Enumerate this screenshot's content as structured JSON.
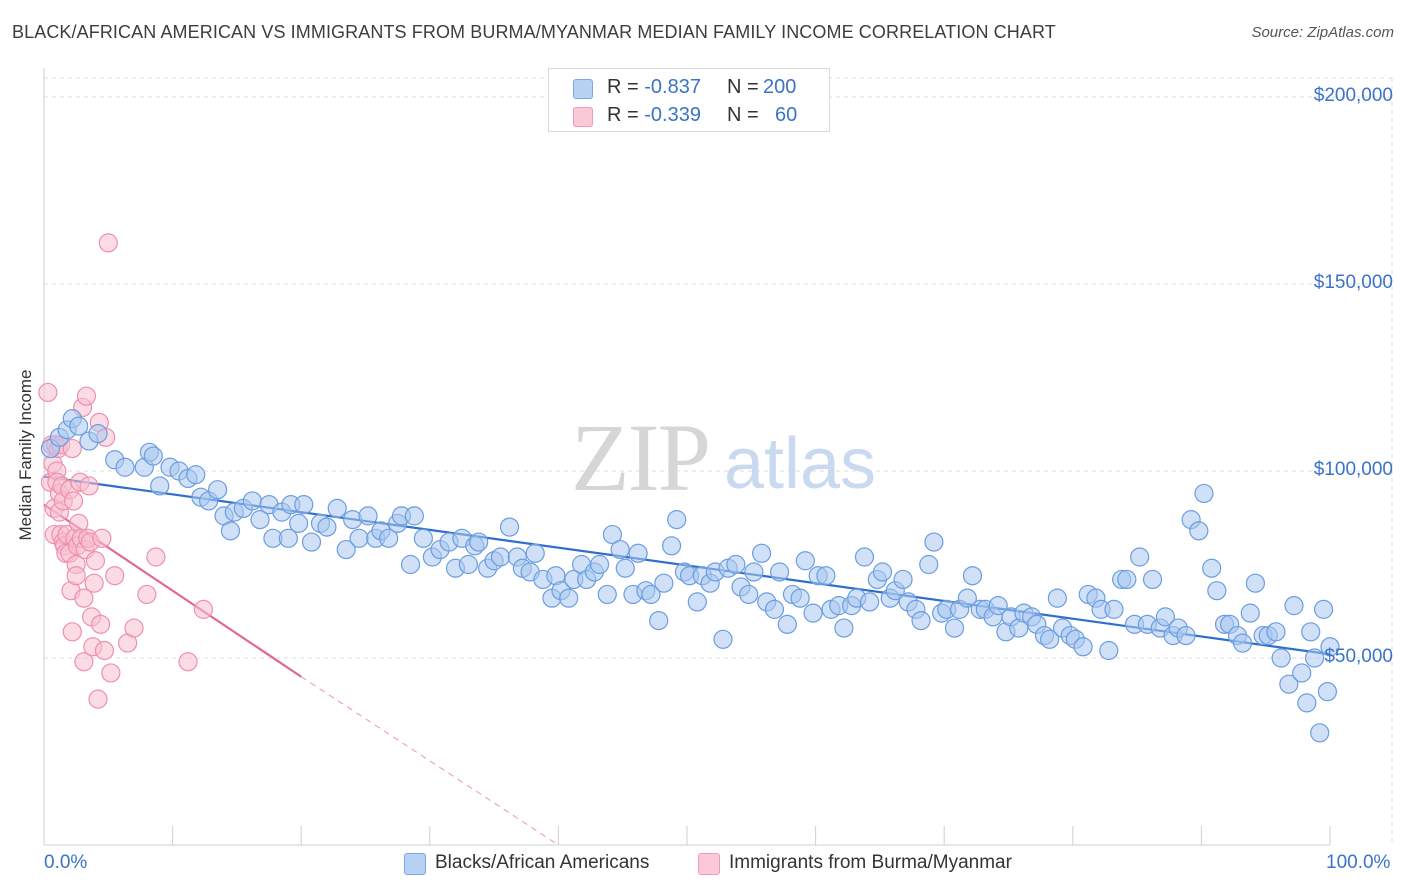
{
  "title": "BLACK/AFRICAN AMERICAN VS IMMIGRANTS FROM BURMA/MYANMAR MEDIAN FAMILY INCOME CORRELATION CHART",
  "source": "Source: ZipAtlas.com",
  "watermark": {
    "zip": "ZIP",
    "atlas": "atlas"
  },
  "legend": {
    "series1": {
      "r_label": "R = ",
      "r_value": "-0.837",
      "n_label": "N = ",
      "n_value": "200"
    },
    "series2": {
      "r_label": "R = ",
      "r_value": "-0.339",
      "n_label": "N = ",
      "n_value": "60"
    }
  },
  "colors": {
    "blue_fill": "#a9c8f0",
    "blue_stroke": "#6b9de0",
    "blue_line": "#2f6fcc",
    "pink_fill": "#f7bfd0",
    "pink_stroke": "#ef8fae",
    "pink_line": "#e06a93",
    "axis_text": "#3b73c9",
    "grid": "#dddddd"
  },
  "chart_data": {
    "type": "scatter",
    "title": "BLACK/AFRICAN AMERICAN VS IMMIGRANTS FROM BURMA/MYANMAR MEDIAN FAMILY INCOME CORRELATION CHART",
    "xlabel": "",
    "ylabel": "Median Family Income",
    "xlim": [
      0,
      100
    ],
    "ylim": [
      0,
      210000
    ],
    "x_tick_labels": [
      "0.0%",
      "100.0%"
    ],
    "y_ticks": [
      50000,
      100000,
      150000,
      200000
    ],
    "y_tick_labels": [
      "$50,000",
      "$100,000",
      "$150,000",
      "$200,000"
    ],
    "grid": true,
    "legend_position": "top-center",
    "series": [
      {
        "name": "Blacks/African Americans",
        "r": -0.837,
        "n": 200,
        "trend": {
          "x": [
            0,
            100
          ],
          "y": [
            98500,
            51000
          ]
        },
        "points": [
          [
            0.5,
            106000
          ],
          [
            1.2,
            109000
          ],
          [
            1.8,
            111000
          ],
          [
            2.2,
            114000
          ],
          [
            2.7,
            112000
          ],
          [
            3.5,
            108000
          ],
          [
            4.2,
            110000
          ],
          [
            5.5,
            103000
          ],
          [
            6.3,
            101000
          ],
          [
            7.8,
            101000
          ],
          [
            8.2,
            105000
          ],
          [
            8.5,
            104000
          ],
          [
            9.0,
            96000
          ],
          [
            9.8,
            101000
          ],
          [
            10.5,
            100000
          ],
          [
            11.2,
            98000
          ],
          [
            11.8,
            99000
          ],
          [
            12.2,
            93000
          ],
          [
            12.8,
            92000
          ],
          [
            13.5,
            95000
          ],
          [
            14.0,
            88000
          ],
          [
            14.5,
            84000
          ],
          [
            14.8,
            89000
          ],
          [
            15.5,
            90000
          ],
          [
            16.2,
            92000
          ],
          [
            16.8,
            87000
          ],
          [
            17.5,
            91000
          ],
          [
            17.8,
            82000
          ],
          [
            18.5,
            89000
          ],
          [
            19.0,
            82000
          ],
          [
            19.2,
            91000
          ],
          [
            19.8,
            86000
          ],
          [
            20.2,
            91000
          ],
          [
            20.8,
            81000
          ],
          [
            21.5,
            86000
          ],
          [
            22.0,
            85000
          ],
          [
            22.8,
            90000
          ],
          [
            23.5,
            79000
          ],
          [
            24.0,
            87000
          ],
          [
            24.5,
            82000
          ],
          [
            25.2,
            88000
          ],
          [
            25.8,
            82000
          ],
          [
            26.2,
            84000
          ],
          [
            26.8,
            82000
          ],
          [
            27.5,
            86000
          ],
          [
            27.8,
            88000
          ],
          [
            28.5,
            75000
          ],
          [
            28.8,
            88000
          ],
          [
            29.5,
            82000
          ],
          [
            30.2,
            77000
          ],
          [
            30.8,
            79000
          ],
          [
            31.5,
            81000
          ],
          [
            32.0,
            74000
          ],
          [
            32.5,
            82000
          ],
          [
            33.0,
            75000
          ],
          [
            33.5,
            80000
          ],
          [
            33.8,
            81000
          ],
          [
            34.5,
            74000
          ],
          [
            35.0,
            76000
          ],
          [
            35.5,
            77000
          ],
          [
            36.2,
            85000
          ],
          [
            36.8,
            77000
          ],
          [
            37.2,
            74000
          ],
          [
            37.8,
            73000
          ],
          [
            38.2,
            78000
          ],
          [
            38.8,
            71000
          ],
          [
            39.5,
            66000
          ],
          [
            39.8,
            72000
          ],
          [
            40.2,
            68000
          ],
          [
            40.8,
            66000
          ],
          [
            41.2,
            71000
          ],
          [
            41.8,
            75000
          ],
          [
            42.2,
            71000
          ],
          [
            42.8,
            73000
          ],
          [
            43.2,
            75000
          ],
          [
            43.8,
            67000
          ],
          [
            44.2,
            83000
          ],
          [
            44.8,
            79000
          ],
          [
            45.2,
            74000
          ],
          [
            45.8,
            67000
          ],
          [
            46.2,
            78000
          ],
          [
            46.8,
            68000
          ],
          [
            47.2,
            67000
          ],
          [
            47.8,
            60000
          ],
          [
            48.2,
            70000
          ],
          [
            48.8,
            80000
          ],
          [
            49.2,
            87000
          ],
          [
            49.8,
            73000
          ],
          [
            50.2,
            72000
          ],
          [
            50.8,
            65000
          ],
          [
            51.2,
            72000
          ],
          [
            51.8,
            70000
          ],
          [
            52.2,
            73000
          ],
          [
            52.8,
            55000
          ],
          [
            53.2,
            74000
          ],
          [
            53.8,
            75000
          ],
          [
            54.2,
            69000
          ],
          [
            54.8,
            67000
          ],
          [
            55.2,
            73000
          ],
          [
            55.8,
            78000
          ],
          [
            56.2,
            65000
          ],
          [
            56.8,
            63000
          ],
          [
            57.2,
            73000
          ],
          [
            57.8,
            59000
          ],
          [
            58.2,
            67000
          ],
          [
            58.8,
            66000
          ],
          [
            59.2,
            76000
          ],
          [
            59.8,
            62000
          ],
          [
            60.2,
            72000
          ],
          [
            60.8,
            72000
          ],
          [
            61.2,
            63000
          ],
          [
            61.8,
            64000
          ],
          [
            62.2,
            58000
          ],
          [
            62.8,
            64000
          ],
          [
            63.2,
            66000
          ],
          [
            63.8,
            77000
          ],
          [
            64.2,
            65000
          ],
          [
            64.8,
            71000
          ],
          [
            65.2,
            73000
          ],
          [
            65.8,
            66000
          ],
          [
            66.2,
            68000
          ],
          [
            66.8,
            71000
          ],
          [
            67.2,
            65000
          ],
          [
            67.8,
            63000
          ],
          [
            68.2,
            60000
          ],
          [
            68.8,
            75000
          ],
          [
            69.2,
            81000
          ],
          [
            69.8,
            62000
          ],
          [
            70.2,
            63000
          ],
          [
            70.8,
            58000
          ],
          [
            71.2,
            63000
          ],
          [
            71.8,
            66000
          ],
          [
            72.2,
            72000
          ],
          [
            72.8,
            63000
          ],
          [
            73.2,
            63000
          ],
          [
            73.8,
            61000
          ],
          [
            74.2,
            64000
          ],
          [
            74.8,
            57000
          ],
          [
            75.2,
            61000
          ],
          [
            75.8,
            58000
          ],
          [
            76.2,
            62000
          ],
          [
            76.8,
            61000
          ],
          [
            77.2,
            59000
          ],
          [
            77.8,
            56000
          ],
          [
            78.2,
            55000
          ],
          [
            78.8,
            66000
          ],
          [
            79.2,
            58000
          ],
          [
            79.8,
            56000
          ],
          [
            80.2,
            55000
          ],
          [
            80.8,
            53000
          ],
          [
            81.2,
            67000
          ],
          [
            81.8,
            66000
          ],
          [
            82.2,
            63000
          ],
          [
            82.8,
            52000
          ],
          [
            83.2,
            63000
          ],
          [
            83.8,
            71000
          ],
          [
            84.2,
            71000
          ],
          [
            84.8,
            59000
          ],
          [
            85.2,
            77000
          ],
          [
            85.8,
            59000
          ],
          [
            86.2,
            71000
          ],
          [
            86.8,
            58000
          ],
          [
            87.2,
            61000
          ],
          [
            87.8,
            56000
          ],
          [
            88.2,
            58000
          ],
          [
            88.8,
            56000
          ],
          [
            89.2,
            87000
          ],
          [
            89.8,
            84000
          ],
          [
            90.2,
            94000
          ],
          [
            90.8,
            74000
          ],
          [
            91.2,
            68000
          ],
          [
            91.8,
            59000
          ],
          [
            92.2,
            59000
          ],
          [
            92.8,
            56000
          ],
          [
            93.2,
            54000
          ],
          [
            93.8,
            62000
          ],
          [
            94.2,
            70000
          ],
          [
            94.8,
            56000
          ],
          [
            95.2,
            56000
          ],
          [
            95.8,
            57000
          ],
          [
            96.2,
            50000
          ],
          [
            96.8,
            43000
          ],
          [
            97.2,
            64000
          ],
          [
            97.8,
            46000
          ],
          [
            98.2,
            38000
          ],
          [
            98.8,
            50000
          ],
          [
            99.2,
            30000
          ],
          [
            99.5,
            63000
          ],
          [
            100.0,
            53000
          ],
          [
            99.8,
            41000
          ],
          [
            98.5,
            57000
          ]
        ]
      },
      {
        "name": "Immigrants from Burma/Myanmar",
        "r": -0.339,
        "n": 60,
        "trend": {
          "x": [
            0,
            20
          ],
          "y": [
            91000,
            45000
          ]
        },
        "trend_dashed": {
          "x": [
            20,
            40
          ],
          "y": [
            45000,
            0
          ]
        },
        "points": [
          [
            0.3,
            121000
          ],
          [
            0.5,
            97000
          ],
          [
            0.6,
            107000
          ],
          [
            0.7,
            102000
          ],
          [
            0.8,
            90000
          ],
          [
            0.8,
            83000
          ],
          [
            0.9,
            107000
          ],
          [
            1.0,
            100000
          ],
          [
            1.0,
            97000
          ],
          [
            1.1,
            106000
          ],
          [
            1.2,
            94000
          ],
          [
            1.2,
            89000
          ],
          [
            1.3,
            83000
          ],
          [
            1.3,
            107000
          ],
          [
            1.4,
            96000
          ],
          [
            1.5,
            92000
          ],
          [
            1.5,
            81000
          ],
          [
            1.6,
            80000
          ],
          [
            1.7,
            78000
          ],
          [
            1.8,
            83000
          ],
          [
            2.0,
            95000
          ],
          [
            2.0,
            78000
          ],
          [
            2.1,
            68000
          ],
          [
            2.2,
            57000
          ],
          [
            2.2,
            106000
          ],
          [
            2.3,
            92000
          ],
          [
            2.4,
            82000
          ],
          [
            2.5,
            75000
          ],
          [
            2.5,
            72000
          ],
          [
            2.6,
            80000
          ],
          [
            2.7,
            86000
          ],
          [
            2.8,
            97000
          ],
          [
            2.9,
            82000
          ],
          [
            3.0,
            117000
          ],
          [
            3.1,
            49000
          ],
          [
            3.1,
            66000
          ],
          [
            3.2,
            79000
          ],
          [
            3.3,
            120000
          ],
          [
            3.4,
            82000
          ],
          [
            3.5,
            96000
          ],
          [
            3.6,
            81000
          ],
          [
            3.7,
            61000
          ],
          [
            3.8,
            53000
          ],
          [
            3.9,
            70000
          ],
          [
            4.0,
            76000
          ],
          [
            4.2,
            39000
          ],
          [
            4.3,
            113000
          ],
          [
            4.4,
            59000
          ],
          [
            4.5,
            82000
          ],
          [
            4.7,
            52000
          ],
          [
            4.8,
            109000
          ],
          [
            5.0,
            161000
          ],
          [
            5.2,
            46000
          ],
          [
            5.5,
            72000
          ],
          [
            6.5,
            54000
          ],
          [
            7.0,
            58000
          ],
          [
            8.0,
            67000
          ],
          [
            8.7,
            77000
          ],
          [
            11.2,
            49000
          ],
          [
            12.4,
            63000
          ]
        ]
      }
    ]
  },
  "bottom_legend": {
    "item1": "Blacks/African Americans",
    "item2": "Immigrants from Burma/Myanmar"
  }
}
